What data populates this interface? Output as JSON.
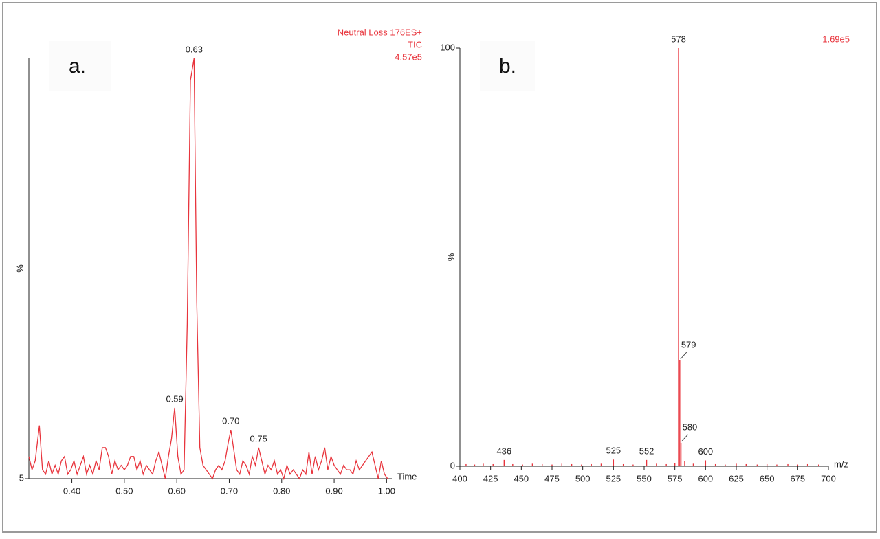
{
  "chart_data": [
    {
      "type": "line",
      "panel_label": "a.",
      "info": [
        "Neutral Loss 176ES+",
        "TIC",
        "4.57e5"
      ],
      "ylabel": "%",
      "xlabel": "Time",
      "color": "#e8343c",
      "xlim": [
        0.318,
        1.01
      ],
      "ylim": [
        5,
        100
      ],
      "yticks": [
        5
      ],
      "xticks": [
        {
          "value": 0.4,
          "label": "0.40"
        },
        {
          "value": 0.5,
          "label": "0.50"
        },
        {
          "value": 0.6,
          "label": "0.60"
        },
        {
          "value": 0.7,
          "label": "0.70"
        },
        {
          "value": 0.8,
          "label": "0.80"
        },
        {
          "value": 0.9,
          "label": "0.90"
        },
        {
          "value": 1.0,
          "label": "1.00"
        }
      ],
      "x": [
        0.318,
        0.324,
        0.33,
        0.338,
        0.344,
        0.35,
        0.356,
        0.362,
        0.368,
        0.374,
        0.38,
        0.386,
        0.392,
        0.398,
        0.404,
        0.41,
        0.416,
        0.422,
        0.428,
        0.434,
        0.44,
        0.446,
        0.452,
        0.458,
        0.464,
        0.47,
        0.476,
        0.482,
        0.488,
        0.494,
        0.5,
        0.506,
        0.512,
        0.518,
        0.524,
        0.53,
        0.536,
        0.542,
        0.548,
        0.554,
        0.56,
        0.566,
        0.572,
        0.578,
        0.584,
        0.59,
        0.596,
        0.602,
        0.608,
        0.614,
        0.62,
        0.626,
        0.633,
        0.638,
        0.644,
        0.65,
        0.656,
        0.662,
        0.668,
        0.674,
        0.68,
        0.686,
        0.692,
        0.698,
        0.703,
        0.708,
        0.714,
        0.72,
        0.726,
        0.732,
        0.738,
        0.744,
        0.75,
        0.756,
        0.762,
        0.768,
        0.774,
        0.78,
        0.786,
        0.792,
        0.798,
        0.804,
        0.81,
        0.816,
        0.822,
        0.828,
        0.834,
        0.84,
        0.846,
        0.852,
        0.858,
        0.864,
        0.87,
        0.876,
        0.882,
        0.888,
        0.894,
        0.9,
        0.906,
        0.912,
        0.918,
        0.924,
        0.93,
        0.936,
        0.942,
        0.948,
        0.954,
        0.96,
        0.966,
        0.972,
        0.978,
        0.984,
        0.99,
        0.996,
        1.002
      ],
      "values": [
        10,
        7,
        9,
        17,
        7,
        6,
        9,
        6,
        8,
        6,
        9,
        10,
        6,
        7,
        9,
        6,
        8,
        10,
        6,
        8,
        6,
        9,
        7,
        12,
        12,
        10,
        6,
        9,
        7,
        8,
        7,
        8,
        10,
        10,
        7,
        9,
        6,
        8,
        7,
        6,
        9,
        11,
        8,
        5,
        10,
        14,
        21,
        10,
        6,
        7,
        40,
        95,
        100,
        45,
        12,
        8,
        7,
        6,
        5,
        7,
        8,
        7,
        9,
        13,
        16,
        12,
        7,
        6,
        9,
        8,
        6,
        10,
        8,
        12,
        9,
        6,
        8,
        7,
        9,
        6,
        7,
        5,
        8,
        6,
        7,
        6,
        5,
        7,
        6,
        11,
        6,
        10,
        7,
        9,
        12,
        7,
        10,
        8,
        7,
        6,
        8,
        7,
        7,
        6,
        9,
        7,
        8,
        9,
        10,
        11,
        8,
        5,
        9,
        6,
        5
      ],
      "annotations": [
        {
          "text": "0.59",
          "x": 0.596
        },
        {
          "text": "0.63",
          "x": 0.633
        },
        {
          "text": "0.70",
          "x": 0.703
        },
        {
          "text": "0.75",
          "x": 0.756
        }
      ]
    },
    {
      "type": "bar",
      "panel_label": "b.",
      "info": [
        "1.69e5"
      ],
      "ylabel": "%",
      "xlabel": "m/z",
      "color": "#e8343c",
      "xlim": [
        400,
        700
      ],
      "ylim": [
        0,
        100
      ],
      "yticks": [
        0,
        100
      ],
      "xticks": [
        400,
        425,
        450,
        475,
        500,
        525,
        550,
        575,
        600,
        625,
        650,
        675,
        700
      ],
      "x": [
        405,
        412,
        419,
        427,
        436,
        443,
        451,
        459,
        467,
        475,
        483,
        491,
        499,
        507,
        515,
        525,
        533,
        541,
        552,
        560,
        568,
        575,
        578,
        579,
        580,
        583,
        590,
        600,
        608,
        616,
        625,
        633,
        642,
        650,
        658,
        667,
        675,
        683,
        692
      ],
      "values": [
        0.5,
        0.4,
        0.6,
        0.5,
        1.5,
        0.5,
        0.4,
        0.6,
        0.5,
        0.4,
        0.6,
        0.5,
        0.4,
        0.5,
        0.6,
        1.6,
        0.5,
        0.4,
        1.5,
        0.6,
        0.5,
        0.8,
        100,
        25.3,
        5.6,
        1.2,
        0.6,
        1.4,
        0.5,
        0.4,
        0.6,
        0.5,
        0.4,
        0.5,
        0.4,
        0.5,
        0.4,
        0.5,
        0.4
      ],
      "annotations": [
        {
          "text": "436",
          "x": 436
        },
        {
          "text": "525",
          "x": 525
        },
        {
          "text": "552",
          "x": 552
        },
        {
          "text": "578",
          "x": 578
        },
        {
          "text": "579",
          "x": 579
        },
        {
          "text": "580",
          "x": 580
        },
        {
          "text": "600",
          "x": 600
        }
      ]
    }
  ]
}
